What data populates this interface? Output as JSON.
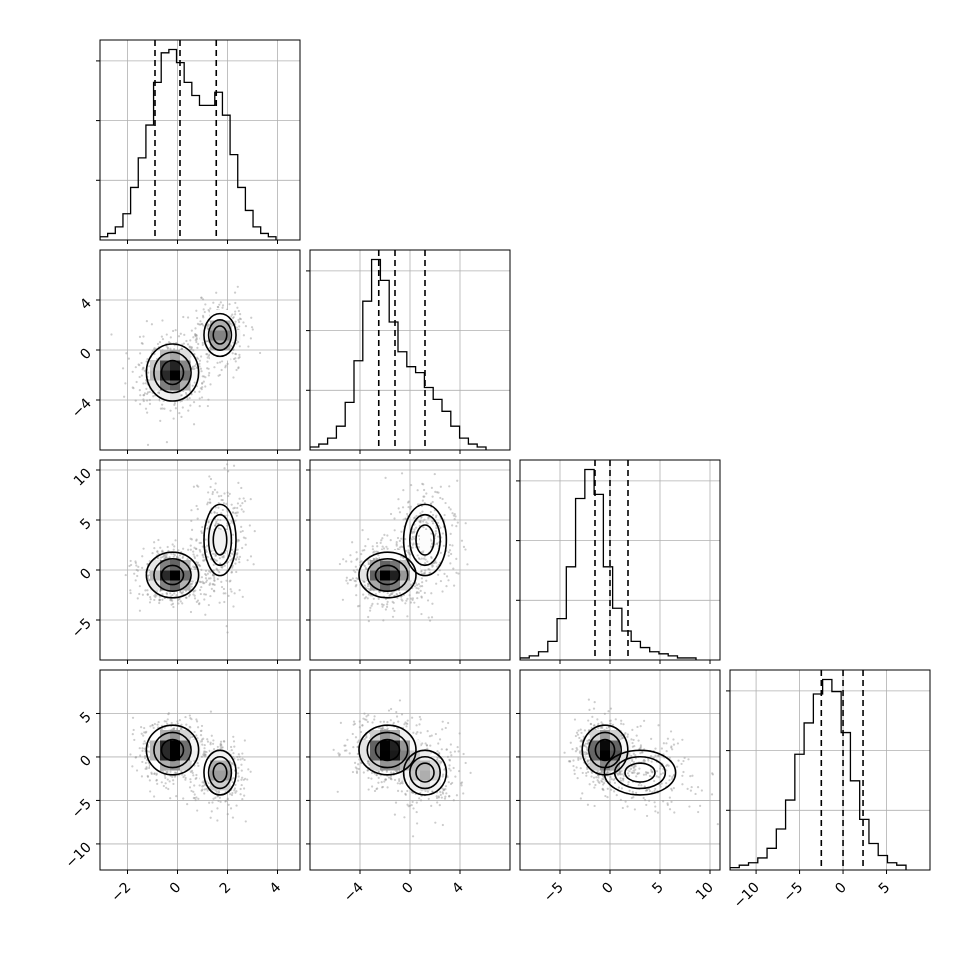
{
  "chart_data": {
    "type": "corner",
    "parameters": [
      {
        "range": [
          -3.1,
          4.9
        ],
        "ticks": [
          "−2",
          "0",
          "2",
          "4"
        ],
        "tick_values": [
          -2,
          0,
          2,
          4
        ],
        "quantiles": [
          -0.9,
          0.1,
          1.55
        ]
      },
      {
        "range": [
          -8.0,
          8.0
        ],
        "ticks": [
          "−4",
          "0",
          "4"
        ],
        "tick_values": [
          -4,
          0,
          4
        ],
        "quantiles": [
          -2.5,
          -1.2,
          1.2
        ]
      },
      {
        "range": [
          -9.0,
          11.0
        ],
        "ticks": [
          "−5",
          "0",
          "5",
          "10"
        ],
        "tick_values": [
          -5,
          0,
          5,
          10
        ],
        "quantiles": [
          -1.5,
          0.0,
          1.8
        ]
      },
      {
        "range": [
          -13.0,
          10.0
        ],
        "ticks": [
          "−10",
          "−5",
          "0",
          "5"
        ],
        "tick_values": [
          -10,
          -5,
          0,
          5
        ],
        "quantiles": [
          -2.5,
          0.0,
          2.3
        ]
      }
    ],
    "histograms": [
      {
        "counts": [
          1,
          2,
          4,
          8,
          16,
          25,
          35,
          48,
          57,
          58,
          54,
          48,
          44,
          41,
          41,
          45,
          38,
          26,
          16,
          9,
          4,
          2,
          1
        ]
      },
      {
        "counts": [
          1,
          2,
          4,
          8,
          16,
          30,
          50,
          64,
          57,
          43,
          33,
          28,
          26,
          21,
          17,
          13,
          8,
          4,
          2,
          1
        ]
      },
      {
        "counts": [
          1,
          2,
          4,
          9,
          20,
          45,
          78,
          92,
          80,
          45,
          25,
          14,
          9,
          6,
          4,
          3,
          2,
          1,
          1
        ]
      },
      {
        "counts": [
          1,
          2,
          3,
          5,
          9,
          17,
          29,
          48,
          61,
          73,
          79,
          74,
          57,
          37,
          21,
          11,
          6,
          3,
          2
        ]
      }
    ],
    "modes": [
      {
        "weight": 0.65,
        "mean": [
          -0.2,
          -1.8,
          -0.5,
          0.8
        ],
        "sd": [
          0.55,
          1.2,
          1.2,
          1.5
        ]
      },
      {
        "weight": 0.35,
        "mean": [
          1.7,
          1.2,
          3.0,
          -1.8
        ],
        "sd": [
          0.45,
          1.2,
          2.5,
          1.8
        ]
      }
    ],
    "hist_yticks": 3,
    "grid": true
  }
}
